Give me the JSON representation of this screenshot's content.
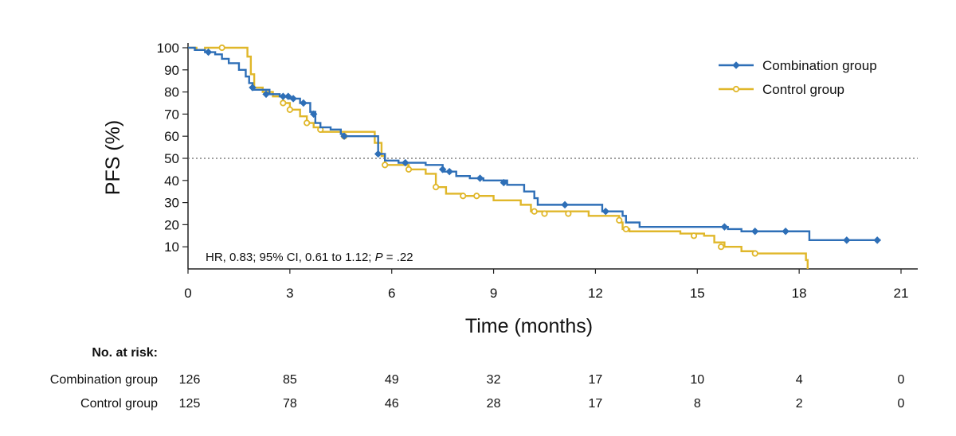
{
  "chart_data": {
    "type": "line",
    "title": "",
    "xlabel": "Time (months)",
    "ylabel": "PFS (%)",
    "xlim": [
      0,
      21
    ],
    "ylim": [
      0,
      100
    ],
    "x_ticks": [
      0,
      3,
      6,
      9,
      12,
      15,
      18,
      21
    ],
    "y_ticks": [
      10,
      20,
      30,
      40,
      50,
      60,
      70,
      80,
      90,
      100
    ],
    "reference_line_y": 50,
    "grid": false,
    "legend_position": "top-right",
    "annotation": {
      "prefix": "HR, 0.83; 95% CI, 0.61 to 1.12; ",
      "p_label": "P",
      "suffix": " = .22"
    },
    "colors": {
      "Combination group": "#2e6fb7",
      "Control group": "#e0b72a"
    },
    "series": [
      {
        "name": "Combination group",
        "marker": "diamond",
        "steps": [
          [
            0,
            100
          ],
          [
            0.2,
            99
          ],
          [
            0.5,
            98
          ],
          [
            0.8,
            97
          ],
          [
            1.0,
            95
          ],
          [
            1.2,
            93
          ],
          [
            1.5,
            90
          ],
          [
            1.7,
            87
          ],
          [
            1.8,
            84
          ],
          [
            1.9,
            81
          ],
          [
            2.4,
            79
          ],
          [
            2.7,
            78
          ],
          [
            3.0,
            77
          ],
          [
            3.3,
            75
          ],
          [
            3.6,
            71
          ],
          [
            3.75,
            66
          ],
          [
            3.9,
            64
          ],
          [
            4.2,
            63
          ],
          [
            4.5,
            61
          ],
          [
            4.6,
            60
          ],
          [
            5.6,
            52
          ],
          [
            5.8,
            49
          ],
          [
            6.2,
            48
          ],
          [
            7.0,
            47
          ],
          [
            7.5,
            44
          ],
          [
            7.9,
            42
          ],
          [
            8.3,
            41
          ],
          [
            8.7,
            40
          ],
          [
            9.4,
            38
          ],
          [
            9.9,
            35
          ],
          [
            10.2,
            32
          ],
          [
            10.3,
            29
          ],
          [
            12.2,
            26
          ],
          [
            12.8,
            24
          ],
          [
            12.9,
            21
          ],
          [
            13.3,
            19
          ],
          [
            15.8,
            19
          ],
          [
            15.9,
            18
          ],
          [
            16.3,
            17
          ],
          [
            18.3,
            13
          ],
          [
            20.4,
            13
          ]
        ],
        "censor": [
          [
            0.6,
            98
          ],
          [
            1.9,
            82
          ],
          [
            2.3,
            79
          ],
          [
            2.8,
            78
          ],
          [
            2.95,
            78
          ],
          [
            3.1,
            77
          ],
          [
            3.4,
            75
          ],
          [
            3.7,
            70
          ],
          [
            4.6,
            60
          ],
          [
            5.6,
            52
          ],
          [
            6.4,
            48
          ],
          [
            7.5,
            45
          ],
          [
            7.7,
            44
          ],
          [
            8.6,
            41
          ],
          [
            9.3,
            39
          ],
          [
            11.1,
            29
          ],
          [
            12.3,
            26
          ],
          [
            15.8,
            19
          ],
          [
            16.7,
            17
          ],
          [
            17.6,
            17
          ],
          [
            19.4,
            13
          ],
          [
            20.3,
            13
          ]
        ]
      },
      {
        "name": "Control group",
        "marker": "circle",
        "steps": [
          [
            0,
            100
          ],
          [
            0.25,
            99
          ],
          [
            0.5,
            100
          ],
          [
            1.7,
            100
          ],
          [
            1.75,
            96
          ],
          [
            1.85,
            88
          ],
          [
            1.95,
            82
          ],
          [
            2.2,
            80
          ],
          [
            2.5,
            78
          ],
          [
            2.8,
            75
          ],
          [
            3.0,
            72
          ],
          [
            3.3,
            69
          ],
          [
            3.5,
            66
          ],
          [
            3.7,
            64
          ],
          [
            3.9,
            62
          ],
          [
            4.2,
            62
          ],
          [
            5.5,
            57
          ],
          [
            5.7,
            51
          ],
          [
            5.8,
            47
          ],
          [
            6.5,
            45
          ],
          [
            7.0,
            43
          ],
          [
            7.3,
            37
          ],
          [
            7.6,
            34
          ],
          [
            8.0,
            34
          ],
          [
            8.1,
            33
          ],
          [
            9.0,
            31
          ],
          [
            9.8,
            29
          ],
          [
            10.1,
            26
          ],
          [
            11.8,
            24
          ],
          [
            12.7,
            21
          ],
          [
            12.8,
            18
          ],
          [
            13.0,
            17
          ],
          [
            14.5,
            16
          ],
          [
            15.2,
            15
          ],
          [
            15.5,
            12
          ],
          [
            15.8,
            10
          ],
          [
            16.3,
            8
          ],
          [
            16.7,
            7
          ],
          [
            18.0,
            7
          ],
          [
            18.2,
            4
          ],
          [
            18.25,
            0
          ]
        ],
        "censor": [
          [
            1.0,
            100
          ],
          [
            2.8,
            75
          ],
          [
            3.0,
            72
          ],
          [
            3.5,
            66
          ],
          [
            3.9,
            63
          ],
          [
            4.6,
            60
          ],
          [
            5.8,
            47
          ],
          [
            6.5,
            45
          ],
          [
            7.3,
            37
          ],
          [
            8.1,
            33
          ],
          [
            8.5,
            33
          ],
          [
            10.2,
            26
          ],
          [
            10.5,
            25
          ],
          [
            11.2,
            25
          ],
          [
            12.7,
            22
          ],
          [
            12.9,
            18
          ],
          [
            14.9,
            15
          ],
          [
            15.7,
            10
          ],
          [
            16.7,
            7
          ]
        ]
      }
    ]
  },
  "risk_table": {
    "title": "No. at risk:",
    "rows": [
      {
        "label": "Combination group",
        "values": [
          126,
          85,
          49,
          32,
          17,
          10,
          4,
          0
        ]
      },
      {
        "label": "Control group",
        "values": [
          125,
          78,
          46,
          28,
          17,
          8,
          2,
          0
        ]
      }
    ]
  }
}
